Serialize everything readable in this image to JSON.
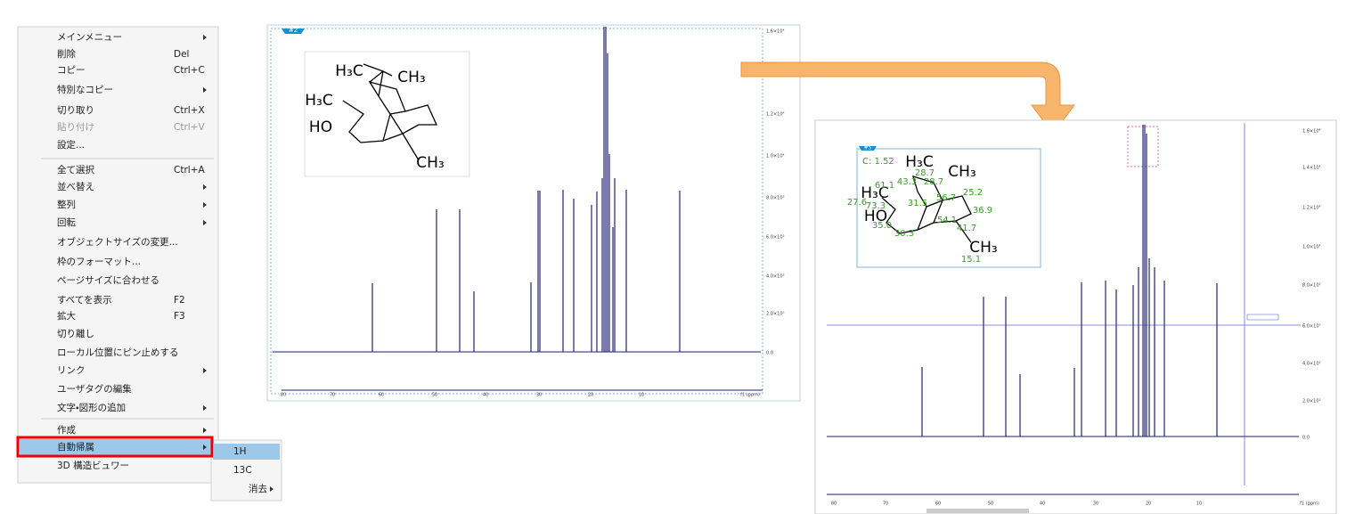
{
  "menu": {
    "items": [
      {
        "label": "メインメニュー",
        "arrow": true
      },
      {
        "label": "削除",
        "shortcut": "Del"
      },
      {
        "label": "コピー",
        "shortcut": "Ctrl+C"
      },
      {
        "label": "特別なコピー",
        "arrow": true
      },
      {
        "label": "切り取り",
        "shortcut": "Ctrl+X"
      },
      {
        "label": "貼り付け",
        "shortcut": "Ctrl+V",
        "disabled": true
      },
      {
        "label": "設定..."
      },
      {
        "label": "全て選択",
        "shortcut": "Ctrl+A",
        "separator_before": true
      },
      {
        "label": "並べ替え",
        "arrow": true
      },
      {
        "label": "整列",
        "arrow": true
      },
      {
        "label": "回転",
        "arrow": true
      },
      {
        "label": "オブジェクトサイズの変更..."
      },
      {
        "label": "枠のフォーマット..."
      },
      {
        "label": "ページサイズに合わせる"
      },
      {
        "label": "すべてを表示",
        "shortcut": "F2"
      },
      {
        "label": "拡大",
        "shortcut": "F3"
      },
      {
        "label": "切り離し"
      },
      {
        "label": "ローカル位置にピン止めする"
      },
      {
        "label": "リンク",
        "arrow": true
      },
      {
        "label": "ユーザタグの編集"
      },
      {
        "label": "文字・図形の追加",
        "arrow": true
      },
      {
        "label": "作成",
        "arrow": true,
        "separator_before": true
      },
      {
        "label": "自動帰属",
        "arrow": true,
        "highlighted": true
      },
      {
        "label": "3D 構造ビュワー"
      }
    ]
  },
  "submenu": {
    "items": [
      {
        "label": "1H",
        "selected": true
      },
      {
        "label": "13C"
      },
      {
        "label": "消去",
        "arrow": true
      }
    ]
  },
  "spectra": [
    {
      "tag": "#2",
      "structure_labels": [
        "H₃C",
        "CH₃",
        "H₃C",
        "HO",
        "CH₃"
      ],
      "y_tick_labels": [
        "1.6×10⁴",
        "1.2×10⁴",
        "1.0×10⁴",
        "8.0×10³",
        "6.0×10³",
        "4.0×10³",
        "2.0×10³",
        "0.0"
      ],
      "x_tick_labels": [
        "80",
        "70",
        "60",
        "50",
        "40",
        "30",
        "20",
        "10",
        "f1 (ppm)"
      ]
    },
    {
      "tag": "#5",
      "structure_labels": [
        "H₃C",
        "CH₃",
        "H₃C",
        "HO",
        "CH₃"
      ],
      "annotation": "C: 1.52",
      "assignments": [
        "28.7",
        "61.1",
        "43.3",
        "28.7",
        "56.7",
        "25.2",
        "27.6",
        "73.3",
        "31.5",
        "36.9",
        "54.1",
        "35.0",
        "30.3",
        "41.7",
        "15.1"
      ],
      "y_tick_labels": [
        "1.6×10⁴",
        "1.4×10⁴",
        "1.2×10⁴",
        "1.0×10⁴",
        "8.0×10³",
        "6.0×10³",
        "4.0×10³",
        "2.0×10³",
        "0.0"
      ],
      "x_tick_labels": [
        "80",
        "70",
        "60",
        "50",
        "40",
        "30",
        "20",
        "10",
        "f1 (ppm)"
      ]
    }
  ]
}
